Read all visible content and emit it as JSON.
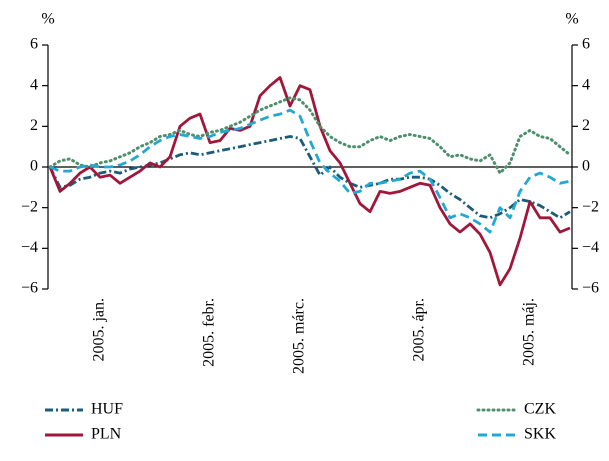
{
  "chart_data": {
    "type": "line",
    "y_label": "%",
    "y2_label": "%",
    "categories": [
      null,
      null,
      null,
      null,
      null,
      "2005. jan.",
      null,
      null,
      null,
      null,
      null,
      null,
      null,
      null,
      null,
      null,
      "2005. febr.",
      null,
      null,
      null,
      null,
      null,
      null,
      null,
      null,
      "2005. márc.",
      null,
      null,
      null,
      null,
      null,
      null,
      null,
      null,
      null,
      null,
      null,
      "2005. ápr.",
      null,
      null,
      null,
      null,
      null,
      null,
      null,
      null,
      null,
      null,
      "2005. máj.",
      null,
      null,
      null,
      null
    ],
    "series": [
      {
        "name": "HUF",
        "color": "#1b5d78",
        "values": [
          0,
          -1,
          -0.9,
          -0.6,
          -0.5,
          -0.3,
          -0.2,
          -0.3,
          -0.1,
          0,
          0.1,
          0.2,
          0.4,
          0.6,
          0.7,
          0.6,
          0.7,
          0.8,
          0.9,
          1.0,
          1.1,
          1.2,
          1.3,
          1.4,
          1.5,
          1.4,
          0.5,
          -0.4,
          0,
          -0.5,
          -0.8,
          -1.0,
          -0.9,
          -0.8,
          -0.6,
          -0.6,
          -0.5,
          -0.5,
          -0.6,
          -0.9,
          -1.3,
          -1.6,
          -2.0,
          -2.4,
          -2.5,
          -2.3,
          -2.0,
          -1.6,
          -1.7,
          -1.9,
          -2.2,
          -2.5,
          -2.2
        ]
      },
      {
        "name": "PLN",
        "color": "#a0173a",
        "values": [
          0,
          -1.2,
          -0.8,
          -0.3,
          0,
          -0.5,
          -0.4,
          -0.8,
          -0.5,
          -0.2,
          0.2,
          0,
          0.5,
          2.0,
          2.4,
          2.6,
          1.2,
          1.3,
          1.9,
          1.8,
          2.0,
          3.5,
          4.0,
          4.4,
          3.0,
          4.0,
          3.8,
          2.0,
          0.8,
          0.2,
          -0.8,
          -1.8,
          -2.2,
          -1.2,
          -1.3,
          -1.2,
          -1.0,
          -0.8,
          -0.9,
          -2.0,
          -2.8,
          -3.2,
          -2.8,
          -3.3,
          -4.2,
          -5.8,
          -5.0,
          -3.5,
          -1.7,
          -2.5,
          -2.5,
          -3.2,
          -3.0
        ]
      },
      {
        "name": "CZK",
        "color": "#4e8f6e",
        "values": [
          0,
          0.3,
          0.4,
          0.1,
          0,
          0.2,
          0.3,
          0.5,
          0.7,
          1.0,
          1.2,
          1.5,
          1.6,
          1.8,
          1.6,
          1.5,
          1.7,
          1.8,
          2.0,
          2.2,
          2.5,
          2.8,
          3.0,
          3.2,
          3.4,
          3.3,
          2.8,
          2.0,
          1.5,
          1.2,
          1.0,
          1.0,
          1.3,
          1.5,
          1.3,
          1.5,
          1.6,
          1.5,
          1.4,
          1.0,
          0.5,
          0.6,
          0.4,
          0.3,
          0.6,
          -0.3,
          0.2,
          1.5,
          1.8,
          1.5,
          1.4,
          1.0,
          0.6
        ]
      },
      {
        "name": "SKK",
        "color": "#22a8d4",
        "values": [
          0,
          -0.2,
          -0.2,
          0,
          0.1,
          0,
          0,
          0.1,
          0.3,
          0.6,
          1.0,
          1.3,
          1.5,
          1.6,
          1.5,
          1.4,
          1.5,
          1.7,
          1.8,
          1.9,
          2.1,
          2.3,
          2.5,
          2.6,
          2.8,
          2.5,
          1.3,
          0.2,
          -0.3,
          -0.7,
          -1.3,
          -1.2,
          -0.8,
          -0.8,
          -0.7,
          -0.6,
          -0.3,
          -0.2,
          -0.6,
          -1.5,
          -2.5,
          -2.3,
          -2.5,
          -2.8,
          -3.2,
          -2.0,
          -2.5,
          -1.2,
          -0.5,
          -0.3,
          -0.5,
          -0.8,
          -0.7
        ]
      }
    ],
    "ylim": [
      -6,
      6
    ],
    "yticks": [
      {
        "value": -6,
        "label": "−6"
      },
      {
        "value": -4,
        "label": "−4"
      },
      {
        "value": -2,
        "label": "−2"
      },
      0,
      2,
      4,
      6
    ],
    "y2lim": [
      -6,
      6
    ],
    "y2ticks": [
      {
        "value": -6,
        "label": "−6"
      },
      {
        "value": -4,
        "label": "−4"
      },
      {
        "value": -2,
        "label": "−2"
      },
      0,
      2,
      4,
      6
    ]
  }
}
